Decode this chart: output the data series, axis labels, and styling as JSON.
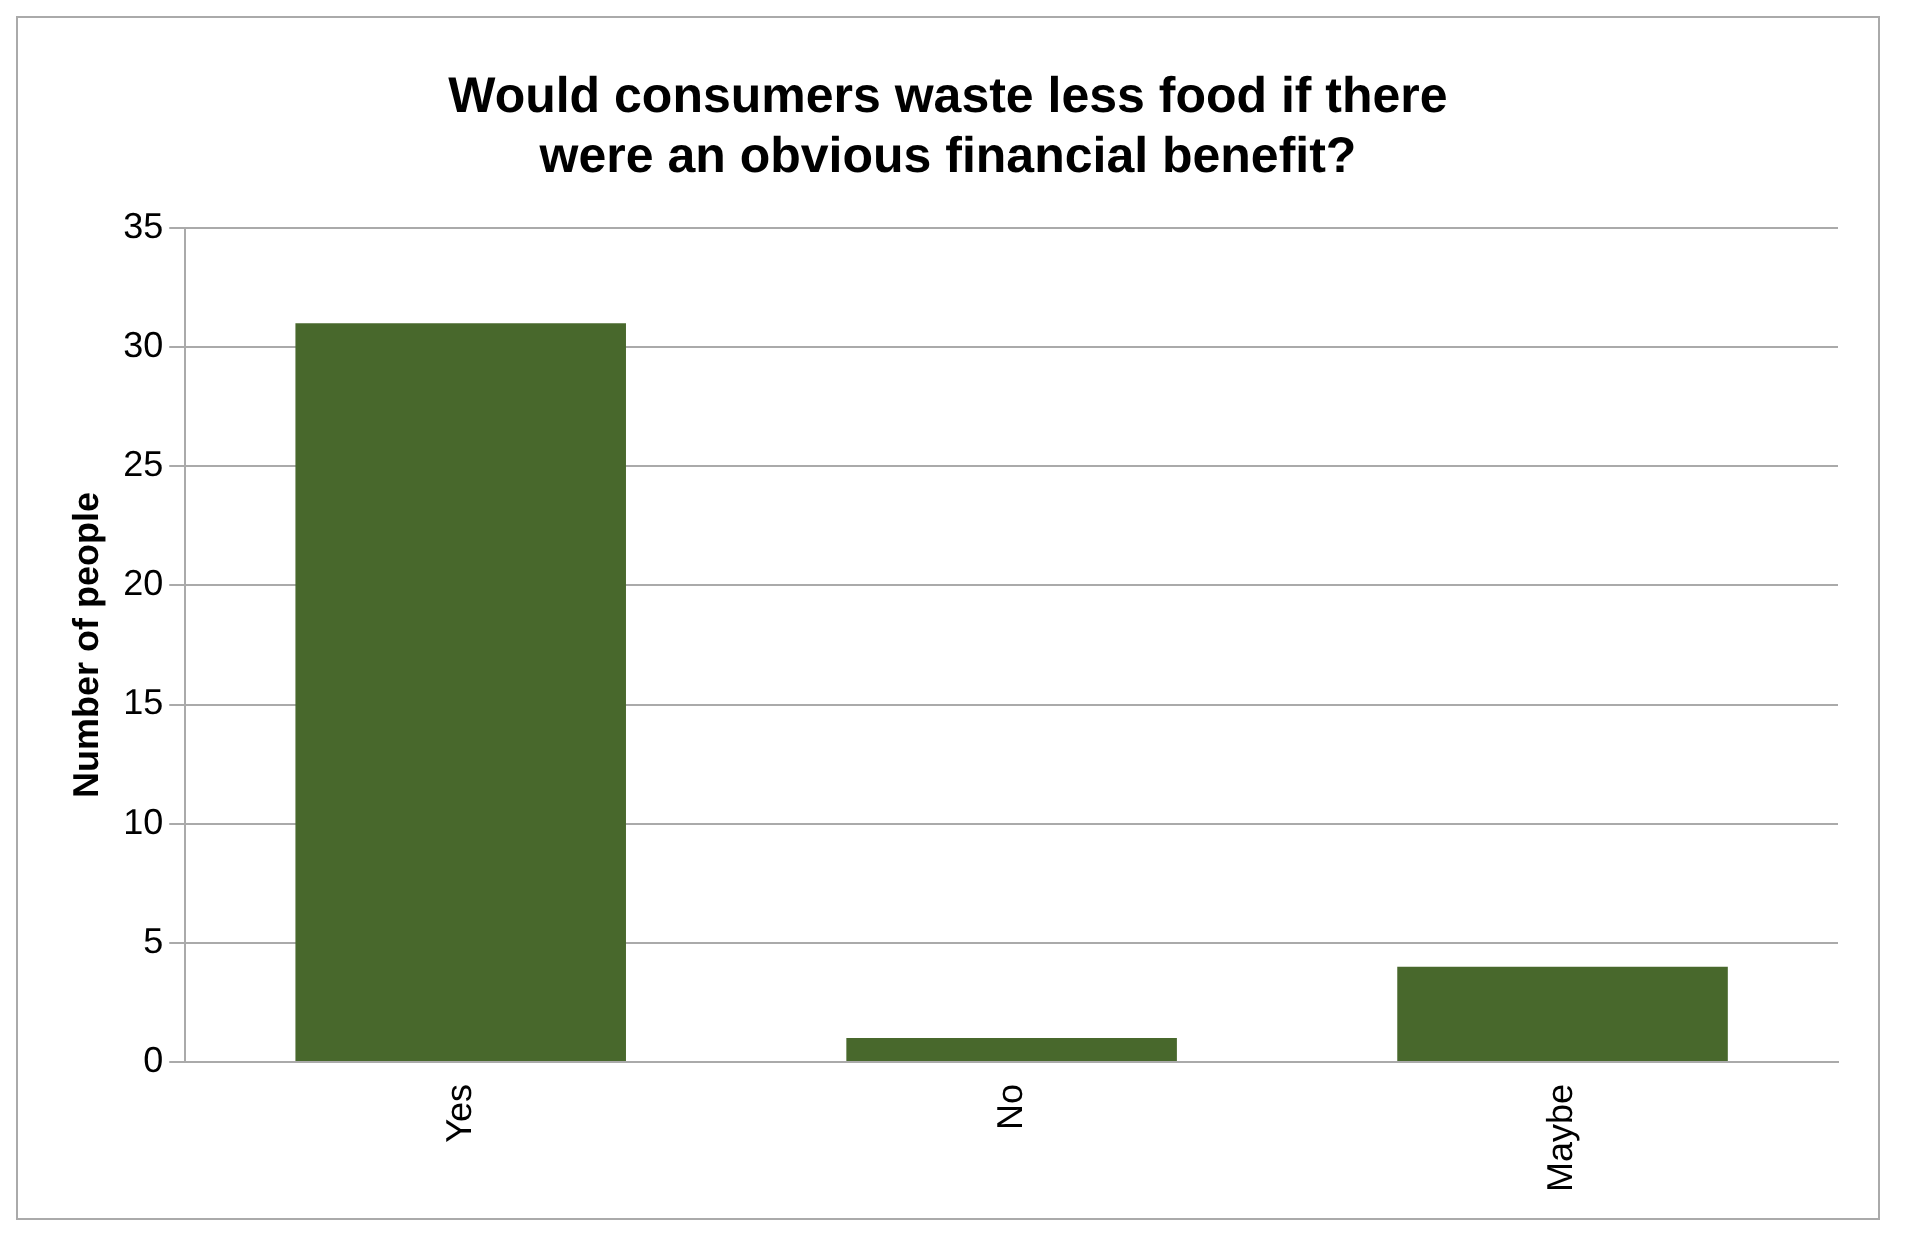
{
  "chart_data": {
    "type": "bar",
    "title": "Would consumers waste less food if there were an obvious financial benefit?",
    "ylabel": "Number of people",
    "categories": [
      "Yes",
      "No",
      "Maybe"
    ],
    "values": [
      31,
      1,
      4
    ],
    "color": "#48682c",
    "ylim": [
      0,
      35
    ],
    "yticks": [
      0,
      5,
      10,
      15,
      20,
      25,
      30,
      35
    ],
    "grid": "y",
    "legend": false
  }
}
